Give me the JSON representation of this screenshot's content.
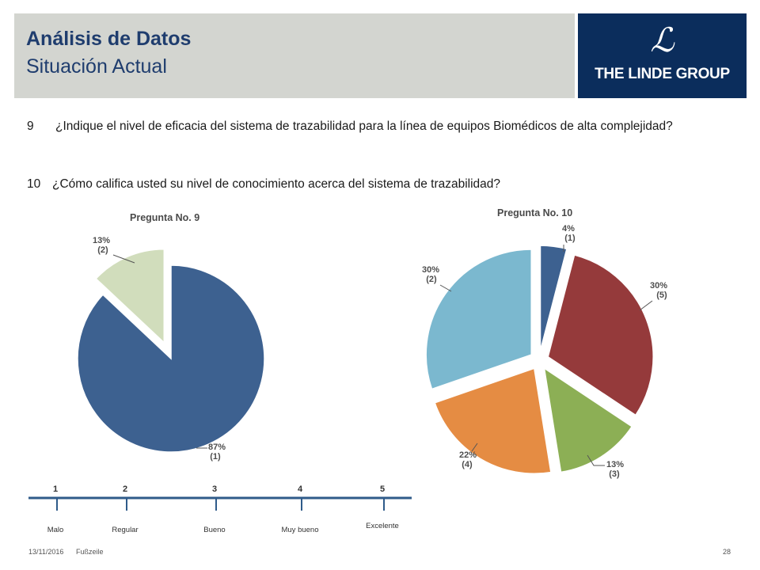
{
  "header": {
    "title": "Análisis de Datos",
    "subtitle": "Situación Actual",
    "logo_text": "THE LINDE GROUP",
    "logo_mark": "ℒ",
    "colors": {
      "band": "#d3d5d0",
      "title": "#1f3d6e",
      "logo_bg": "#0b2d5c"
    }
  },
  "questions": [
    {
      "number": "9",
      "text": "¿Indique el nivel de eficacia del sistema de trazabilidad para la línea de  equipos Biomédicos de alta complejidad?"
    },
    {
      "number": "10",
      "text": "¿Cómo califica usted su nivel de conocimiento acerca del sistema de trazabilidad?"
    }
  ],
  "scale": {
    "points": [
      {
        "number": "1",
        "label": "Malo"
      },
      {
        "number": "2",
        "label": "Regular"
      },
      {
        "number": "3",
        "label": "Bueno"
      },
      {
        "number": "4",
        "label": "Muy bueno"
      },
      {
        "number": "5",
        "label": "Excelente"
      }
    ]
  },
  "chart_data": [
    {
      "type": "pie",
      "title": "Pregunta No. 9",
      "slices": [
        {
          "percent": "87%",
          "count": "(1)",
          "value": 87,
          "color": "#3d6190"
        },
        {
          "percent": "13%",
          "count": "(2)",
          "value": 13,
          "color": "#d1ddbc"
        }
      ]
    },
    {
      "type": "pie",
      "title": "Pregunta No. 10",
      "slices": [
        {
          "percent": "4%",
          "count": "(1)",
          "value": 4,
          "color": "#3d6190"
        },
        {
          "percent": "30%",
          "count": "(5)",
          "value": 30,
          "color": "#953a3b"
        },
        {
          "percent": "13%",
          "count": "(3)",
          "value": 13,
          "color": "#8caf55"
        },
        {
          "percent": "22%",
          "count": "(4)",
          "value": 22,
          "color": "#e58c43"
        },
        {
          "percent": "30%",
          "count": "(2)",
          "value": 30,
          "color": "#7bb8cf"
        }
      ]
    }
  ],
  "footer": {
    "date": "13/11/2016",
    "label": "Fußzeile",
    "page": "28"
  }
}
